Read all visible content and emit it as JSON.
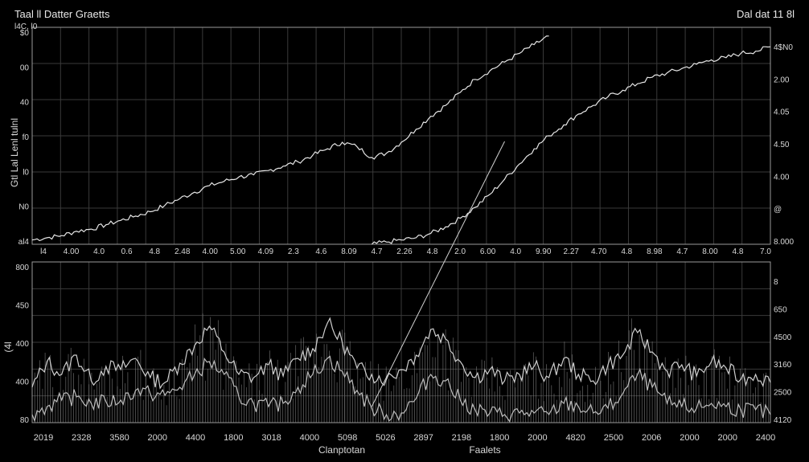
{
  "chart_data": [
    {
      "type": "line",
      "title": "Taal ll Datter Graetts",
      "title_right": "Dal dat 11 8l",
      "left_ylabel": "Gtl Lal Lenl tulnl",
      "left_corner_label": "l4C, l0",
      "right_corner_label": "",
      "left_yticks": [
        "$0",
        "00",
        "40",
        "f0",
        "l0",
        "N0",
        "al4"
      ],
      "right_yticks": [
        "4$N0",
        "2.00",
        "4.05",
        "4.50",
        "4.00",
        "@",
        "8.000"
      ],
      "x_tick_labels": [
        "l4",
        "4.00",
        "4.0",
        "0.6",
        "4.8",
        "2.48",
        "4.00",
        "5.00",
        "4.09",
        "2.3",
        "4.6",
        "8.09",
        "4.7",
        "2.26",
        "4.8",
        "2.0",
        "6.00",
        "4.0",
        "9.90",
        "2.27",
        "4.70",
        "4.8",
        "8.98",
        "4.7",
        "8.00",
        "4.8",
        "7.0"
      ],
      "x": [
        0,
        2,
        4,
        6,
        8,
        10,
        12,
        14,
        16,
        18,
        20,
        22,
        24,
        26,
        28,
        30,
        32,
        34,
        36,
        38,
        40,
        42,
        44,
        46,
        48,
        50,
        52,
        54,
        56,
        58,
        60,
        62,
        64,
        66,
        68,
        70,
        72,
        74,
        76,
        78,
        80,
        82,
        84,
        86,
        88,
        90,
        92,
        94,
        96,
        98,
        100
      ],
      "ylim": [
        0,
        100
      ],
      "series": [
        {
          "values": [
            2,
            3,
            4,
            6,
            7,
            9,
            11,
            13,
            15,
            18,
            21,
            24,
            27,
            29,
            31,
            32,
            34,
            36,
            38,
            41,
            44,
            47,
            45,
            40,
            42,
            47,
            53,
            59,
            64,
            70,
            76,
            80,
            84,
            88,
            92,
            96,
            null,
            null,
            null,
            null,
            null,
            null,
            null,
            null,
            null,
            null,
            null,
            null,
            null,
            null,
            null
          ],
          "color": "#e6e6e6"
        },
        {
          "values": [
            null,
            null,
            null,
            null,
            null,
            null,
            null,
            null,
            null,
            null,
            null,
            null,
            null,
            null,
            null,
            null,
            null,
            null,
            null,
            null,
            null,
            null,
            null,
            0,
            1,
            2,
            3,
            5,
            8,
            12,
            17,
            23,
            30,
            37,
            44,
            50,
            55,
            60,
            64,
            68,
            71,
            74,
            77,
            79,
            81,
            83,
            85,
            86,
            88,
            89,
            91
          ],
          "color": "#e6e6e6"
        }
      ]
    },
    {
      "type": "line",
      "ylabel": "(4l",
      "left_yticks": [
        "800",
        "450",
        "400",
        "400",
        "80"
      ],
      "right_yticks": [
        "8",
        "650",
        "4500",
        "3160",
        "2500",
        "4120"
      ],
      "x_tick_labels": [
        "2019",
        "2328",
        "3580",
        "2000",
        "4400",
        "1800",
        "3018",
        "4000",
        "5098",
        "5026",
        "2897",
        "2198",
        "1800",
        "2000",
        "4820",
        "2500",
        "2006",
        "2000",
        "2000",
        "2400"
      ],
      "xlabel": "Clanptotan",
      "xlabel2": "Faalets",
      "x": [
        0,
        2,
        4,
        6,
        8,
        10,
        12,
        14,
        16,
        18,
        20,
        22,
        24,
        26,
        28,
        30,
        32,
        34,
        36,
        38,
        40,
        42,
        44,
        46,
        48,
        50,
        52,
        54,
        56,
        58,
        60,
        62,
        64,
        66,
        68,
        70,
        72,
        74,
        76,
        78,
        80,
        82,
        84,
        86,
        88,
        90,
        92,
        94,
        96,
        98,
        100
      ],
      "ylim": [
        0,
        100
      ],
      "series": [
        {
          "values": [
            22,
            38,
            30,
            42,
            26,
            35,
            33,
            40,
            28,
            25,
            37,
            48,
            60,
            44,
            30,
            28,
            36,
            29,
            40,
            46,
            62,
            50,
            34,
            30,
            27,
            33,
            42,
            58,
            52,
            38,
            28,
            33,
            26,
            30,
            35,
            28,
            40,
            30,
            26,
            36,
            42,
            56,
            44,
            32,
            36,
            29,
            38,
            34,
            27,
            30,
            25
          ],
          "color": "#cfcfcf"
        },
        {
          "values": [
            5,
            10,
            14,
            16,
            12,
            13,
            14,
            20,
            18,
            17,
            22,
            30,
            38,
            30,
            16,
            12,
            10,
            12,
            22,
            30,
            40,
            32,
            20,
            9,
            5,
            6,
            15,
            30,
            26,
            14,
            8,
            6,
            5,
            6,
            6,
            5,
            12,
            10,
            6,
            9,
            18,
            30,
            22,
            12,
            10,
            9,
            12,
            10,
            8,
            8,
            5
          ],
          "color": "#bdbdbd"
        }
      ],
      "connector_line": {
        "from_x": 46,
        "from_y": 10,
        "to_x": 64,
        "to_y": 175
      }
    }
  ]
}
